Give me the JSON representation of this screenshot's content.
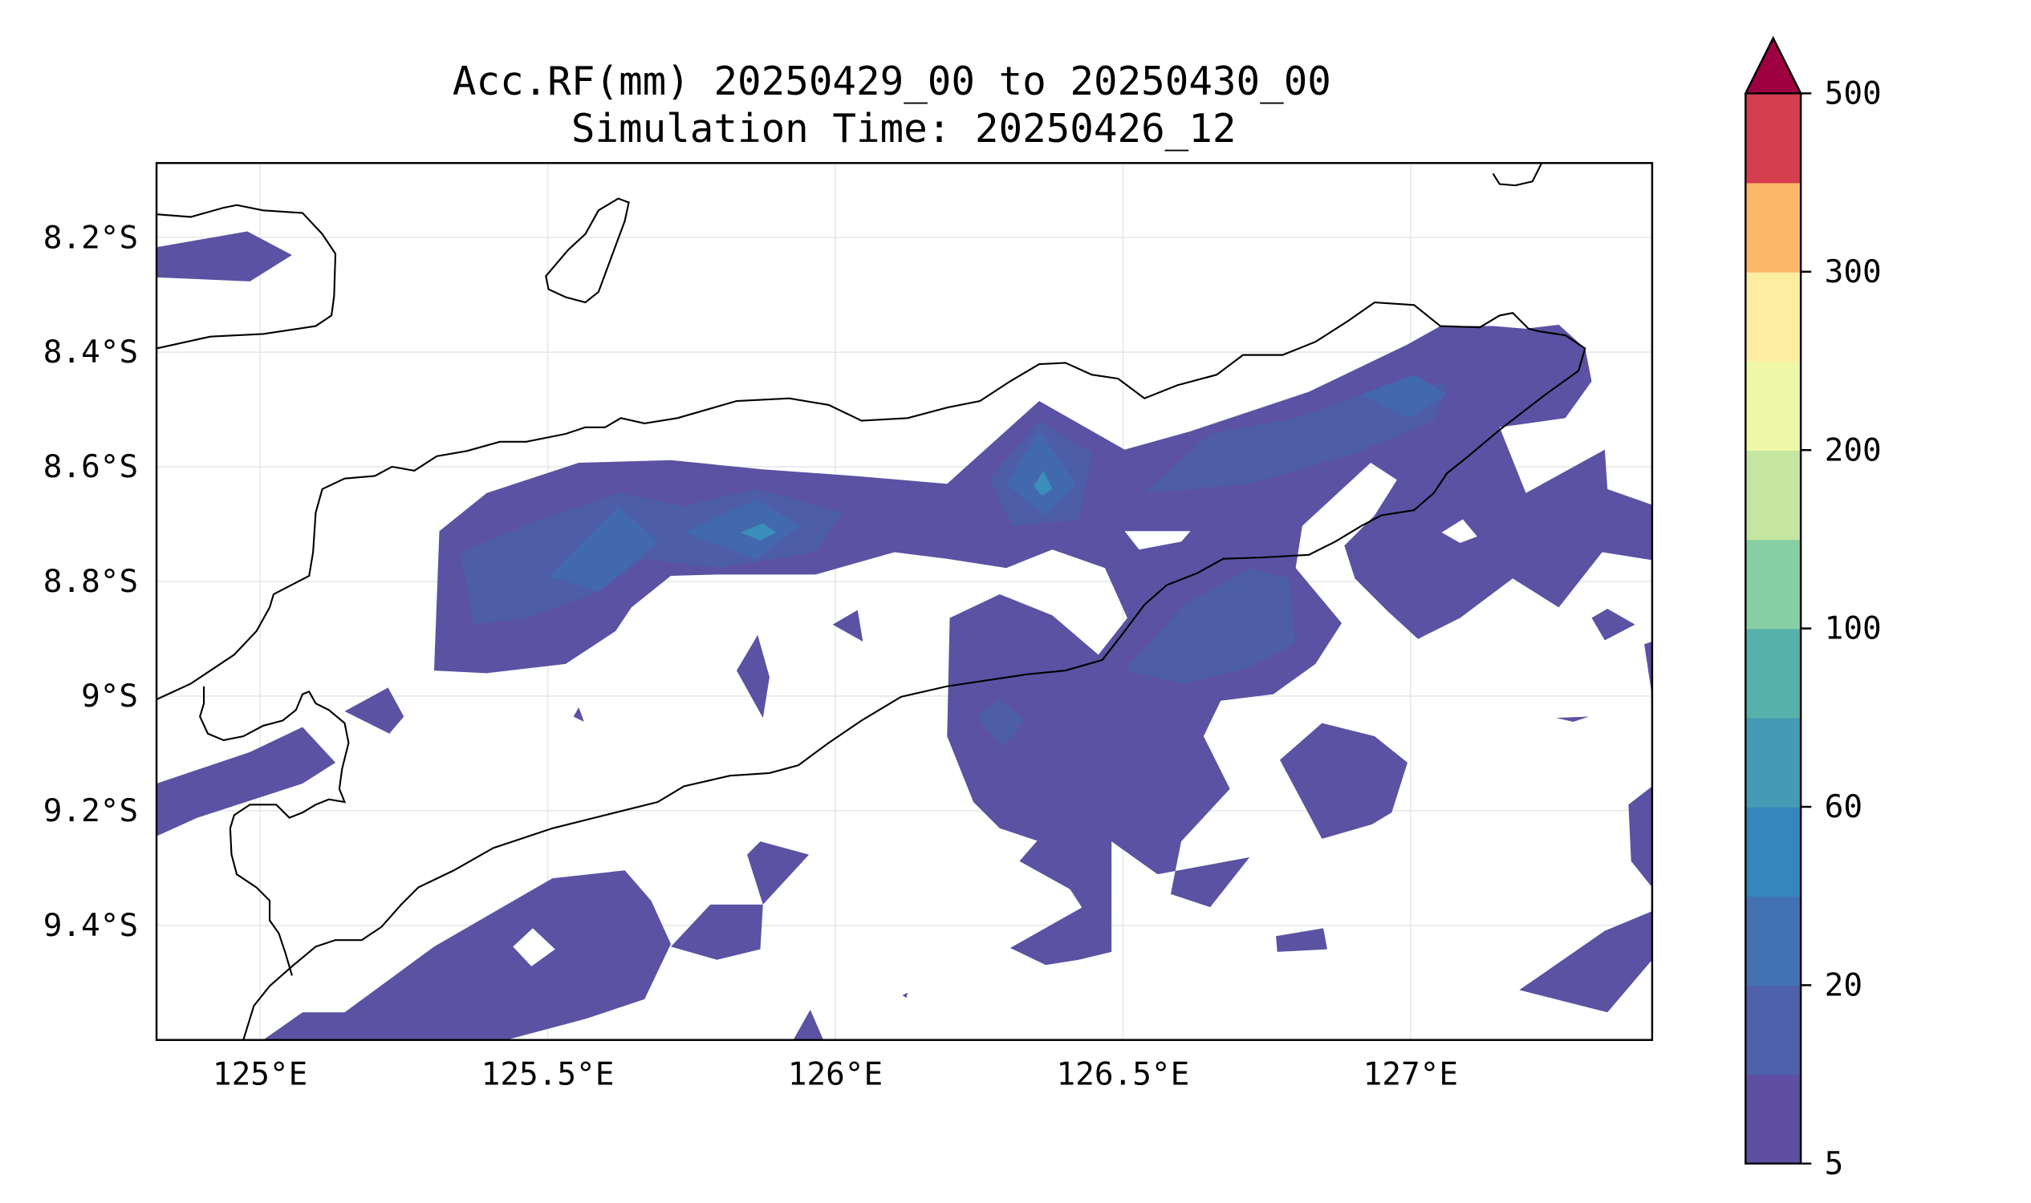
{
  "title": {
    "line1": "Acc.RF(mm) 20250429_00 to 20250430_00",
    "line2": "Simulation Time: 20250426_12"
  },
  "map": {
    "lon_range": [
      124.82,
      127.42
    ],
    "lat_range": [
      -9.6,
      -8.07
    ],
    "lon_ticks": [
      {
        "value": 125.0,
        "label": "125°E"
      },
      {
        "value": 125.5,
        "label": "125.5°E"
      },
      {
        "value": 126.0,
        "label": "126°E"
      },
      {
        "value": 126.5,
        "label": "126.5°E"
      },
      {
        "value": 127.0,
        "label": "127°E"
      }
    ],
    "lat_ticks": [
      {
        "value": -8.2,
        "label": "8.2°S"
      },
      {
        "value": -8.4,
        "label": "8.4°S"
      },
      {
        "value": -8.6,
        "label": "8.6°S"
      },
      {
        "value": -8.8,
        "label": "8.8°S"
      },
      {
        "value": -9.0,
        "label": "9°S"
      },
      {
        "value": -9.2,
        "label": "9.2°S"
      },
      {
        "value": -9.4,
        "label": "9.4°S"
      }
    ],
    "grid": true,
    "colors": {
      "grid": "#e8e8e8",
      "coastline": "#000000",
      "level_5_10": "#5b52a3",
      "level_10_20": "#4e5ea6",
      "level_20_40": "#4269ad",
      "level_40_60": "#3880b8",
      "level_60_80": "#429bb4"
    }
  },
  "colorbar": {
    "levels": [
      5,
      10,
      20,
      40,
      60,
      80,
      100,
      150,
      200,
      250,
      300,
      400,
      500
    ],
    "tick_labels": [
      "5",
      "20",
      "60",
      "100",
      "200",
      "300",
      "500"
    ],
    "colors": [
      "#5e4fa2",
      "#4f61aa",
      "#4272b2",
      "#3387bc",
      "#439bb5",
      "#56b1ab",
      "#86cfa5",
      "#c4e6a0",
      "#eff8a6",
      "#fdeda0",
      "#fdb768",
      "#d53e4f"
    ],
    "extend_color": "#9e0142",
    "extend": "max"
  },
  "chart_data": {
    "type": "heatmap",
    "variable": "Acc.RF(mm)",
    "period": [
      "20250429_00",
      "20250430_00"
    ],
    "simulation_time": "20250426_12",
    "x_range": [
      124.82,
      127.42
    ],
    "y_range": [
      -9.6,
      -8.07
    ],
    "levels": [
      5,
      10,
      20,
      40,
      60,
      80,
      100,
      150,
      200,
      250,
      300,
      400,
      500
    ],
    "max_value_estimate": 70
  }
}
